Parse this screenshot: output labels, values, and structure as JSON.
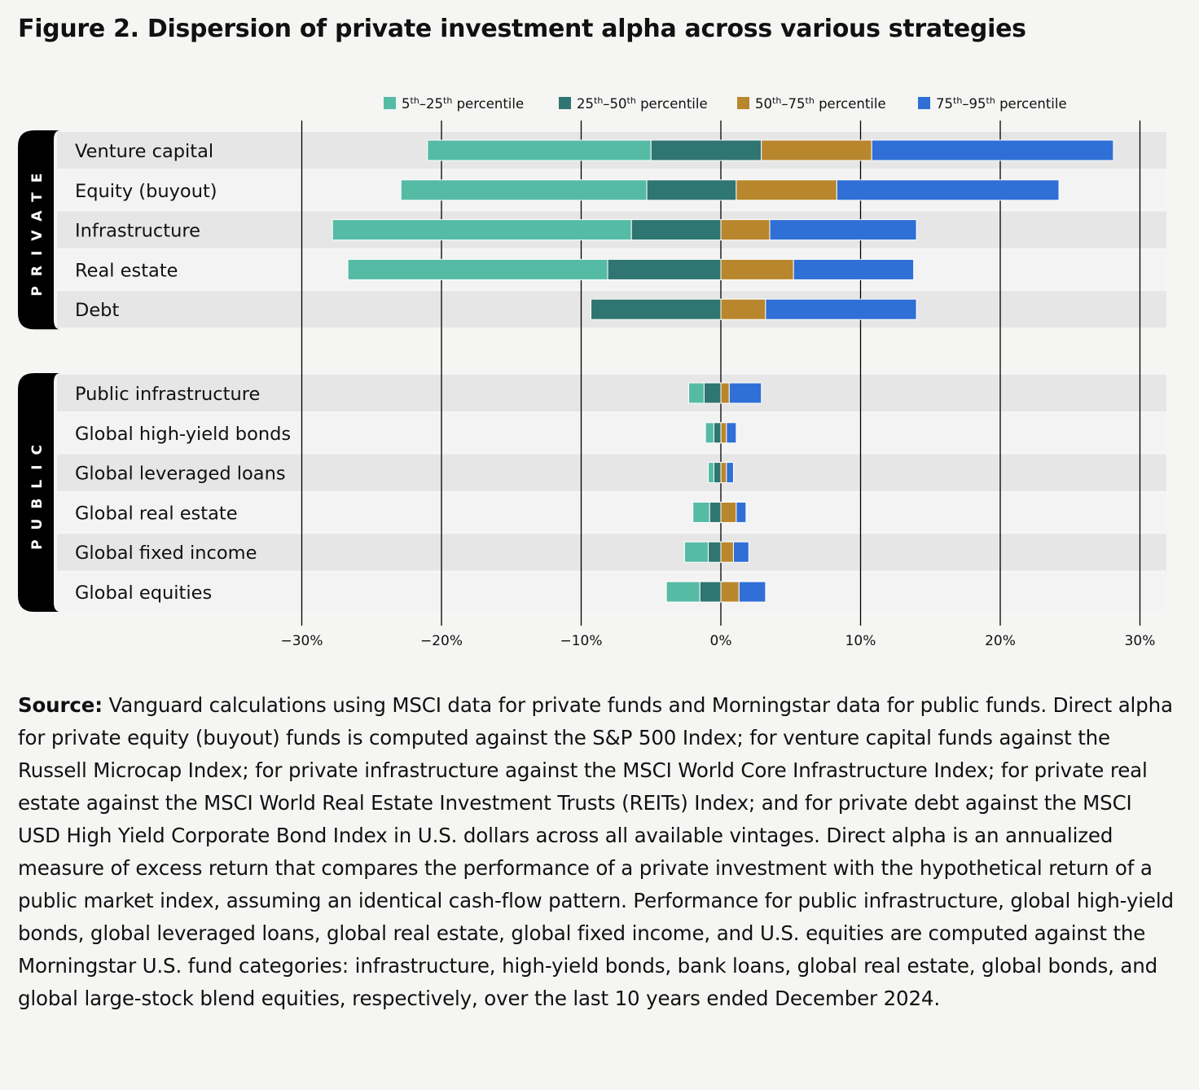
{
  "title": "Figure 2. Dispersion of private investment alpha across various strategies",
  "colors": {
    "p5_25": "#55bba5",
    "p25_50": "#2f7571",
    "p50_75": "#b8862c",
    "p75_95": "#2f6fd6",
    "row_dark": "#e6e6e6",
    "row_light": "#f3f3f3",
    "group_bracket": "#000000"
  },
  "chart_data": {
    "type": "bar",
    "orientation": "horizontal stacked (floating)",
    "xlim": [
      -30,
      30
    ],
    "xticks": [
      -30,
      -20,
      -10,
      0,
      10,
      20,
      30
    ],
    "xtick_labels": [
      "−30%",
      "−20%",
      "−10%",
      "0%",
      "10%",
      "20%",
      "30%"
    ],
    "legend_position": "top",
    "legend": [
      {
        "key": "p5_25",
        "base": "5",
        "sup1": "th",
        "mid": "–25",
        "sup2": "th",
        "tail": " percentile"
      },
      {
        "key": "p25_50",
        "base": "25",
        "sup1": "th",
        "mid": "–50",
        "sup2": "th",
        "tail": " percentile"
      },
      {
        "key": "p50_75",
        "base": "50",
        "sup1": "th",
        "mid": "–75",
        "sup2": "th",
        "tail": " percentile"
      },
      {
        "key": "p75_95",
        "base": "75",
        "sup1": "th",
        "mid": "–95",
        "sup2": "th",
        "tail": " percentile"
      }
    ],
    "groups": [
      {
        "name": "PRIVATE",
        "rows": [
          {
            "label": "Venture capital",
            "p5": -21,
            "p25": -5,
            "p50": 2.9,
            "p75": 10.8,
            "p95": 28.1
          },
          {
            "label": "Equity (buyout)",
            "p5": -22.9,
            "p25": -5.3,
            "p50": 1.1,
            "p75": 8.3,
            "p95": 24.2
          },
          {
            "label": "Infrastructure",
            "p5": -27.8,
            "p25": -6.4,
            "p50": 0,
            "p75": 3.5,
            "p95": 14
          },
          {
            "label": "Real estate",
            "p5": -26.7,
            "p25": -8.1,
            "p50": 0,
            "p75": 5.2,
            "p95": 13.8
          },
          {
            "label": "Debt",
            "p5": -9.3,
            "p25": -9.3,
            "p50": 0,
            "p75": 3.2,
            "p95": 14
          }
        ]
      },
      {
        "name": "PUBLIC",
        "rows": [
          {
            "label": "Public infrastructure",
            "p5": -2.3,
            "p25": -1.2,
            "p50": 0,
            "p75": 0.6,
            "p95": 2.9
          },
          {
            "label": "Global high-yield bonds",
            "p5": -1.1,
            "p25": -0.5,
            "p50": 0,
            "p75": 0.4,
            "p95": 1.1
          },
          {
            "label": "Global leveraged loans",
            "p5": -0.9,
            "p25": -0.5,
            "p50": 0,
            "p75": 0.4,
            "p95": 0.9
          },
          {
            "label": "Global real estate",
            "p5": -2,
            "p25": -0.8,
            "p50": 0,
            "p75": 1.1,
            "p95": 1.8
          },
          {
            "label": "Global fixed income",
            "p5": -2.6,
            "p25": -0.9,
            "p50": 0,
            "p75": 0.9,
            "p95": 2
          },
          {
            "label": "Global equities",
            "p5": -3.9,
            "p25": -1.5,
            "p50": 0,
            "p75": 1.3,
            "p95": 3.2
          }
        ]
      }
    ]
  },
  "source": {
    "lead": "Source:",
    "text": " Vanguard calculations using MSCI data for private funds and Morningstar data for public funds. Direct alpha for private equity (buyout) funds is computed against the S&P 500 Index; for venture capital funds against the Russell Microcap Index; for private infrastructure against the MSCI World Core Infrastructure Index; for private real estate against the MSCI World Real Estate Investment Trusts (REITs) Index; and for private debt against the MSCI USD High Yield Corporate Bond Index in U.S. dollars across all available vintages. Direct alpha is an annualized measure of excess return that compares the performance of a private investment with the hypothetical return of a public market index, assuming an identical cash-flow pattern. Performance for public infrastructure, global high-yield bonds, global leveraged loans, global real estate, global fixed income, and U.S. equities are computed against the Morningstar U.S. fund categories: infrastructure, high-yield bonds, bank loans, global real estate, global bonds, and global large-stock blend equities, respectively, over the last 10 years ended December 2024."
  }
}
